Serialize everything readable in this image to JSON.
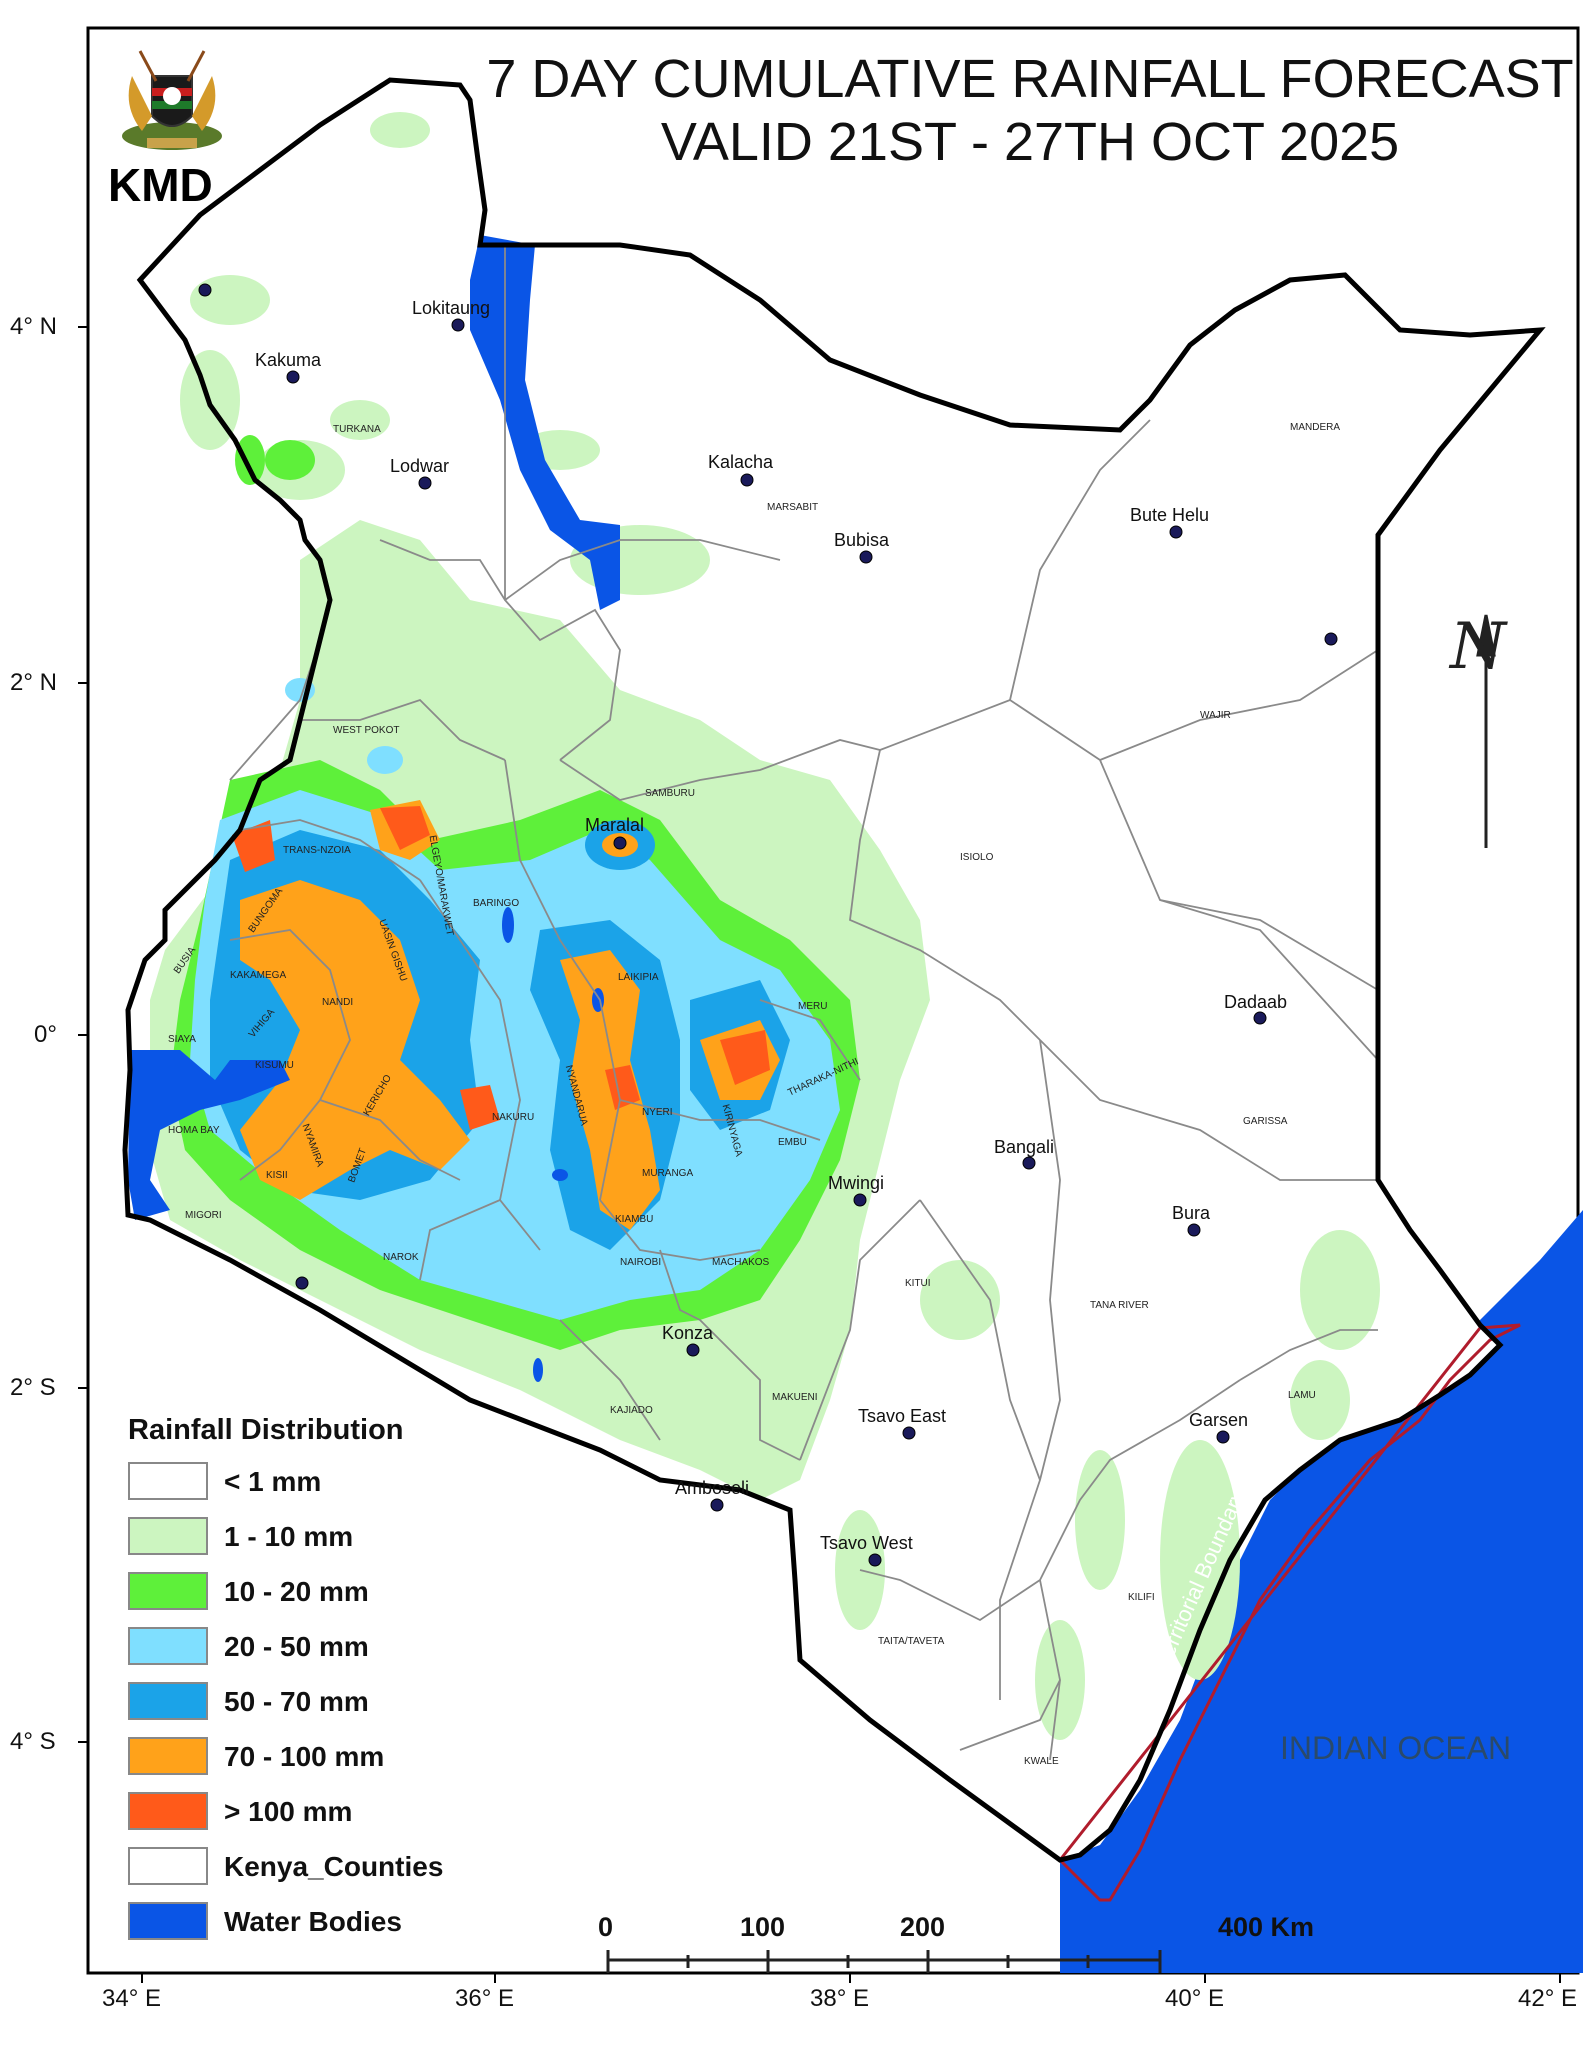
{
  "title_line1": "7 DAY CUMULATIVE RAINFALL FORECAST",
  "title_line2": "VALID 21ST - 27TH  OCT 2025",
  "agency": "KMD",
  "latitude_labels": [
    "4° N",
    "2° N",
    "0°",
    "2° S",
    "4° S"
  ],
  "longitude_labels": [
    "34° E",
    "36° E",
    "38° E",
    "40° E",
    "42° E"
  ],
  "cities": [
    {
      "name": "Lokitaung"
    },
    {
      "name": "Kakuma"
    },
    {
      "name": "Lodwar"
    },
    {
      "name": "Kalacha"
    },
    {
      "name": "Bubisa"
    },
    {
      "name": "Bute Helu"
    },
    {
      "name": "Maralal"
    },
    {
      "name": "Dadaab"
    },
    {
      "name": "Bangali"
    },
    {
      "name": "Mwingi"
    },
    {
      "name": "Bura"
    },
    {
      "name": "Konza"
    },
    {
      "name": "Tsavo East"
    },
    {
      "name": "Garsen"
    },
    {
      "name": "Amboseli"
    },
    {
      "name": "Tsavo West"
    }
  ],
  "counties": [
    {
      "name": "TURKANA"
    },
    {
      "name": "MARSABIT"
    },
    {
      "name": "MANDERA"
    },
    {
      "name": "WAJIR"
    },
    {
      "name": "WEST POKOT"
    },
    {
      "name": "SAMBURU"
    },
    {
      "name": "ISIOLO"
    },
    {
      "name": "TRANS-NZOIA"
    },
    {
      "name": "BARINGO"
    },
    {
      "name": "BUNGOMA"
    },
    {
      "name": "BUSIA"
    },
    {
      "name": "KAKAMEGA"
    },
    {
      "name": "UASIN GISHU"
    },
    {
      "name": "ELGEYO/MARAKWET"
    },
    {
      "name": "LAIKIPIA"
    },
    {
      "name": "MERU"
    },
    {
      "name": "SIAYA"
    },
    {
      "name": "VIHIGA"
    },
    {
      "name": "NANDI"
    },
    {
      "name": "KISUMU"
    },
    {
      "name": "THARAKA-NITHI"
    },
    {
      "name": "GARISSA"
    },
    {
      "name": "KERICHO"
    },
    {
      "name": "NYANDARUA"
    },
    {
      "name": "NAKURU"
    },
    {
      "name": "NYERI"
    },
    {
      "name": "KIRINYAGA"
    },
    {
      "name": "EMBU"
    },
    {
      "name": "HOMA BAY"
    },
    {
      "name": "NYAMIRA"
    },
    {
      "name": "BOMET"
    },
    {
      "name": "KISII"
    },
    {
      "name": "MIGORI"
    },
    {
      "name": "MURANGA"
    },
    {
      "name": "KIAMBU"
    },
    {
      "name": "NAROK"
    },
    {
      "name": "NAIROBI"
    },
    {
      "name": "MACHAKOS"
    },
    {
      "name": "KITUI"
    },
    {
      "name": "TANA RIVER"
    },
    {
      "name": "LAMU"
    },
    {
      "name": "KAJIADO"
    },
    {
      "name": "MAKUENI"
    },
    {
      "name": "KILIFI"
    },
    {
      "name": "TAITA/TAVETA"
    },
    {
      "name": "KWALE"
    }
  ],
  "legend": {
    "title": "Rainfall Distribution",
    "items": [
      {
        "label": "< 1 mm",
        "color": "#ffffff"
      },
      {
        "label": "1 - 10 mm",
        "color": "#ccf5c0"
      },
      {
        "label": "10 - 20 mm",
        "color": "#5ef03a"
      },
      {
        "label": "20 - 50 mm",
        "color": "#7fdfff"
      },
      {
        "label": "50 - 70 mm",
        "color": "#1ba3e8"
      },
      {
        "label": "70 - 100 mm",
        "color": "#ffa21a"
      },
      {
        "label": "> 100 mm",
        "color": "#ff5a1a"
      },
      {
        "label": "Kenya_Counties",
        "color": "#ffffff"
      },
      {
        "label": "Water Bodies",
        "color": "#0a55e6"
      }
    ]
  },
  "scale_bar": {
    "labels": [
      "0",
      "100",
      "200",
      "400 Km"
    ]
  },
  "ocean_label": "INDIAN OCEAN",
  "territorial_label": "Territorial Boundary",
  "colors": {
    "water": "#0a55e6",
    "boundary": "#000000",
    "county_line": "#8a8a8a",
    "territorial": "#b01c2c"
  }
}
